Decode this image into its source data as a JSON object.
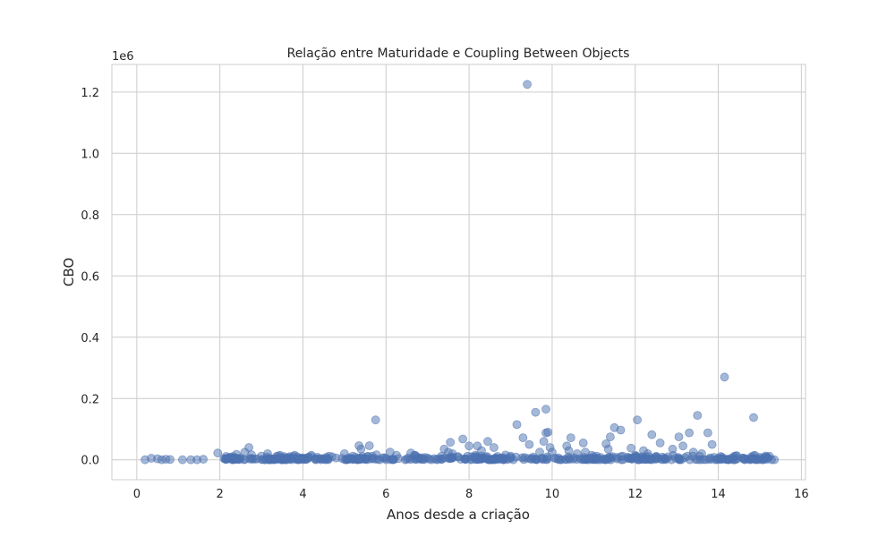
{
  "chart_data": {
    "type": "scatter",
    "title": "Relação entre Maturidade e Coupling Between Objects",
    "xlabel": "Anos desde a criação",
    "ylabel": "CBO",
    "y_offset_label": "1e6",
    "xlim": [
      -0.6,
      16.1
    ],
    "ylim": [
      -0.065,
      1.29
    ],
    "x_ticks": [
      0,
      2,
      4,
      6,
      8,
      10,
      12,
      14,
      16
    ],
    "x_tick_labels": [
      "0",
      "2",
      "4",
      "6",
      "8",
      "10",
      "12",
      "14",
      "16"
    ],
    "y_ticks": [
      0.0,
      0.2,
      0.4,
      0.6,
      0.8,
      1.0,
      1.2
    ],
    "y_tick_labels": [
      "0.0",
      "0.2",
      "0.4",
      "0.6",
      "0.8",
      "1.0",
      "1.2"
    ],
    "grid": true,
    "point_color": "#4c72b0",
    "point_opacity": 0.5,
    "points": [
      [
        0.2,
        0.0
      ],
      [
        0.35,
        0.005
      ],
      [
        0.5,
        0.003
      ],
      [
        0.6,
        0.0
      ],
      [
        0.7,
        0.002
      ],
      [
        0.8,
        0.001
      ],
      [
        1.1,
        0.0
      ],
      [
        1.3,
        0.0
      ],
      [
        1.45,
        0.0
      ],
      [
        1.6,
        0.002
      ],
      [
        1.95,
        0.022
      ],
      [
        2.2,
        0.004
      ],
      [
        2.3,
        0.0
      ],
      [
        2.4,
        0.018
      ],
      [
        2.6,
        0.025
      ],
      [
        2.7,
        0.04
      ],
      [
        2.75,
        0.005
      ],
      [
        2.9,
        0.003
      ],
      [
        3.0,
        0.012
      ],
      [
        3.15,
        0.02
      ],
      [
        3.2,
        0.004
      ],
      [
        3.4,
        0.002
      ],
      [
        3.5,
        0.0
      ],
      [
        3.6,
        0.006
      ],
      [
        3.8,
        0.015
      ],
      [
        3.9,
        0.001
      ],
      [
        4.0,
        0.004
      ],
      [
        4.2,
        0.015
      ],
      [
        4.3,
        0.003
      ],
      [
        4.5,
        0.002
      ],
      [
        4.7,
        0.01
      ],
      [
        4.8,
        0.006
      ],
      [
        5.0,
        0.02
      ],
      [
        5.1,
        0.002
      ],
      [
        5.2,
        0.012
      ],
      [
        5.35,
        0.046
      ],
      [
        5.4,
        0.035
      ],
      [
        5.5,
        0.004
      ],
      [
        5.6,
        0.046
      ],
      [
        5.75,
        0.13
      ],
      [
        5.8,
        0.002
      ],
      [
        6.0,
        0.005
      ],
      [
        6.1,
        0.025
      ],
      [
        6.3,
        0.004
      ],
      [
        6.5,
        0.002
      ],
      [
        6.6,
        0.022
      ],
      [
        6.7,
        0.015
      ],
      [
        6.8,
        0.003
      ],
      [
        7.0,
        0.006
      ],
      [
        7.1,
        0.0
      ],
      [
        7.3,
        0.004
      ],
      [
        7.4,
        0.035
      ],
      [
        7.5,
        0.025
      ],
      [
        7.55,
        0.057
      ],
      [
        7.6,
        0.02
      ],
      [
        7.8,
        0.002
      ],
      [
        7.85,
        0.068
      ],
      [
        8.0,
        0.045
      ],
      [
        8.05,
        0.01
      ],
      [
        8.2,
        0.045
      ],
      [
        8.3,
        0.03
      ],
      [
        8.45,
        0.06
      ],
      [
        8.6,
        0.04
      ],
      [
        8.8,
        0.005
      ],
      [
        9.0,
        0.012
      ],
      [
        9.15,
        0.115
      ],
      [
        9.3,
        0.072
      ],
      [
        9.4,
        1.225
      ],
      [
        9.45,
        0.05
      ],
      [
        9.6,
        0.155
      ],
      [
        9.7,
        0.025
      ],
      [
        9.8,
        0.06
      ],
      [
        9.85,
        0.165
      ],
      [
        9.85,
        0.088
      ],
      [
        9.9,
        0.09
      ],
      [
        9.95,
        0.04
      ],
      [
        10.0,
        0.025
      ],
      [
        10.1,
        0.004
      ],
      [
        10.35,
        0.045
      ],
      [
        10.4,
        0.03
      ],
      [
        10.45,
        0.072
      ],
      [
        10.6,
        0.02
      ],
      [
        10.75,
        0.055
      ],
      [
        10.8,
        0.025
      ],
      [
        11.0,
        0.01
      ],
      [
        11.1,
        0.005
      ],
      [
        11.3,
        0.052
      ],
      [
        11.35,
        0.035
      ],
      [
        11.4,
        0.075
      ],
      [
        11.5,
        0.105
      ],
      [
        11.55,
        0.008
      ],
      [
        11.65,
        0.097
      ],
      [
        11.7,
        0.012
      ],
      [
        11.9,
        0.038
      ],
      [
        12.0,
        0.015
      ],
      [
        12.05,
        0.13
      ],
      [
        12.2,
        0.03
      ],
      [
        12.3,
        0.02
      ],
      [
        12.4,
        0.082
      ],
      [
        12.5,
        0.01
      ],
      [
        12.6,
        0.055
      ],
      [
        12.7,
        0.005
      ],
      [
        12.9,
        0.035
      ],
      [
        13.05,
        0.075
      ],
      [
        13.15,
        0.045
      ],
      [
        13.3,
        0.088
      ],
      [
        13.4,
        0.025
      ],
      [
        13.5,
        0.145
      ],
      [
        13.55,
        0.012
      ],
      [
        13.6,
        0.02
      ],
      [
        13.75,
        0.088
      ],
      [
        13.85,
        0.05
      ],
      [
        13.9,
        0.008
      ],
      [
        14.0,
        0.002
      ],
      [
        14.15,
        0.27
      ],
      [
        14.25,
        0.0
      ],
      [
        14.35,
        0.0
      ],
      [
        14.6,
        0.005
      ],
      [
        14.8,
        0.01
      ],
      [
        14.85,
        0.138
      ],
      [
        15.0,
        0.008
      ],
      [
        15.2,
        0.006
      ],
      [
        15.35,
        0.0
      ]
    ]
  }
}
